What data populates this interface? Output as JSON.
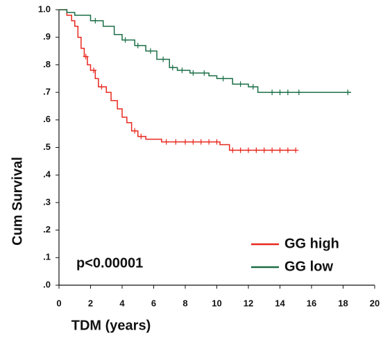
{
  "chart_data": {
    "type": "step",
    "x_label": "TDM (years)",
    "y_label": "Cum Survival",
    "annotation": "p<0.00001",
    "xlim": [
      0,
      20
    ],
    "xticks": [
      0,
      2,
      4,
      6,
      8,
      10,
      12,
      14,
      16,
      18,
      20
    ],
    "ylim": [
      0,
      1
    ],
    "yticks": [
      {
        "value": 0,
        "label": ".0"
      },
      {
        "value": 0.1,
        "label": ".1"
      },
      {
        "value": 0.2,
        "label": ".2"
      },
      {
        "value": 0.3,
        "label": ".3"
      },
      {
        "value": 0.4,
        "label": ".4"
      },
      {
        "value": 0.5,
        "label": ".5"
      },
      {
        "value": 0.6,
        "label": ".6"
      },
      {
        "value": 0.7,
        "label": ".7"
      },
      {
        "value": 0.8,
        "label": ".8"
      },
      {
        "value": 0.9,
        "label": ".9"
      },
      {
        "value": 1,
        "label": "1.0"
      }
    ],
    "series": [
      {
        "name": "GG high",
        "color": "#e8281e",
        "x": [
          0,
          0.3,
          0.5,
          0.8,
          1.0,
          1.2,
          1.4,
          1.6,
          1.8,
          2.0,
          2.3,
          2.5,
          3.0,
          3.3,
          3.7,
          4.0,
          4.3,
          4.6,
          5.0,
          5.5,
          6.5,
          10.2,
          10.8,
          15
        ],
        "values": [
          1.0,
          1.0,
          0.98,
          0.96,
          0.94,
          0.9,
          0.86,
          0.83,
          0.8,
          0.78,
          0.75,
          0.72,
          0.7,
          0.67,
          0.64,
          0.61,
          0.59,
          0.56,
          0.54,
          0.53,
          0.52,
          0.51,
          0.49,
          0.49
        ],
        "censor_x": [
          1.7,
          2.2,
          2.7,
          4.8,
          5.2,
          6.8,
          7.4,
          8,
          8.5,
          9,
          9.5,
          10,
          11,
          11.5,
          12,
          12.5,
          13,
          13.5,
          14,
          14.5,
          15
        ],
        "censor_values": [
          0.83,
          0.78,
          0.72,
          0.56,
          0.54,
          0.52,
          0.52,
          0.52,
          0.52,
          0.52,
          0.52,
          0.52,
          0.49,
          0.49,
          0.49,
          0.49,
          0.49,
          0.49,
          0.49,
          0.49,
          0.49
        ]
      },
      {
        "name": "GG low",
        "color": "#1a6e46",
        "x": [
          0,
          0.5,
          1.0,
          2.0,
          2.8,
          3.5,
          4.0,
          4.8,
          5.5,
          6.2,
          7.0,
          7.5,
          8.3,
          9.5,
          10.0,
          11.0,
          12.0,
          12.6,
          18.5
        ],
        "values": [
          1.0,
          0.99,
          0.98,
          0.96,
          0.94,
          0.91,
          0.89,
          0.87,
          0.85,
          0.82,
          0.79,
          0.78,
          0.77,
          0.76,
          0.75,
          0.73,
          0.72,
          0.7,
          0.7
        ],
        "censor_x": [
          2.3,
          4.2,
          5.0,
          5.8,
          6.6,
          7.2,
          7.8,
          8.5,
          9.2,
          10.4,
          11.5,
          12.3,
          13.5,
          14.0,
          14.5,
          15.2,
          18.3
        ],
        "censor_values": [
          0.96,
          0.89,
          0.87,
          0.85,
          0.82,
          0.79,
          0.78,
          0.77,
          0.77,
          0.75,
          0.73,
          0.72,
          0.7,
          0.7,
          0.7,
          0.7,
          0.7
        ]
      }
    ]
  }
}
